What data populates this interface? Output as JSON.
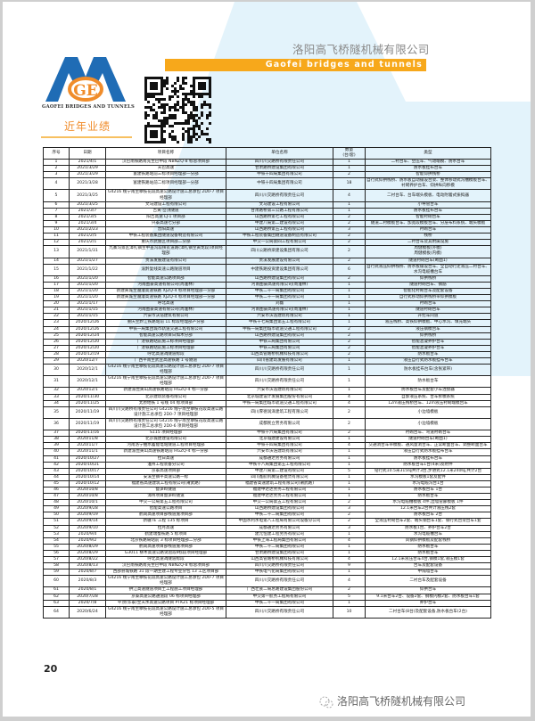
{
  "header": {
    "company_cn": "洛阳高飞桥隧机械有限公司",
    "company_en": "Gaofei bridges and tunnels",
    "logo_text": "GAOFEI BRIDGES AND TUNNELS",
    "section_title": "近年业绩"
  },
  "colors": {
    "orange": "#f7a81b",
    "blue": "#1f6cb5",
    "logo_orange": "#f08c2a",
    "bg_blue": "#e3f3fb"
  },
  "table": {
    "headers": [
      "序号",
      "日期",
      "项目名称",
      "单位名称",
      "数量\n(台/套)",
      "类型"
    ],
    "rows": [
      [
        "1",
        "2021/4/1",
        "汉巴南铁路南充至巴中段 NBNZQ-8 标总项目部",
        "四川川交路桥有限责任公司",
        "1",
        "二衬台车、空压车、气动端模、防水台车"
      ],
      [
        "2",
        "2021/3/29",
        "天巴高速",
        "甘肃路桥建设集团有限公司",
        "1",
        "防水板挂布台车"
      ],
      [
        "3",
        "2021/3/29",
        "富建铁路站前三标项目经理部一分部",
        "中铁十四局集团有限公司",
        "2",
        "智能仰拱栈桥"
      ],
      [
        "4",
        "2021/3/28",
        "富建铁路站前二标项目经理部一分部",
        "中铁十四局集团有限公司",
        "18",
        "自行式仰拱栈桥、防水板自动铺设台架、整体移动式沟槽模板台车、衬砌养护台车、仰拱纵向移模"
      ],
      [
        "5",
        "2021/3/25",
        "G4216 线宁南至攀枝花段高速公路设计施工总承包 2D0-7 项目经理部",
        "四川川交路桥有限责任公司",
        "4",
        "二衬台车、台车端头模板、电动附着式振捣器"
      ],
      [
        "6",
        "2021/3/25",
        "文马建设工程有限公司",
        "文马建设工程有限公司",
        "1",
        "小导管台车"
      ],
      [
        "7",
        "2021/3/7",
        "吉黄·岔顶隧道",
        "甘肃路桥第三公路工程有限公司",
        "1",
        "防水板挂布台车"
      ],
      [
        "8",
        "2021/3/5",
        "阳吉高速 LJ-1 项目部",
        "山西路桥第七工程有限公司",
        "2",
        "智能衬砌台车"
      ],
      [
        "9",
        "2021/3/4",
        "兴泰高速七分部",
        "中建八局第二建设有限公司",
        "2",
        "隧道二衬模板台车、加宽段模板台车、分层布料系统、端头模板"
      ],
      [
        "10",
        "2021/2/23",
        "晋阳高速",
        "山西路桥第五工程有限公司",
        "3",
        "衬砌台车"
      ],
      [
        "11",
        "2021/2/5",
        "中铁工程装备集团隧道设备制造有限公司",
        "中铁工程装备集团隧道设备制造有限公司",
        "2",
        "栈桥"
      ],
      [
        "12",
        "2021/2/1",
        "重庆市武隆区项目部二分部",
        "中交一公局第四工程有限公司",
        "2",
        "二衬台车及其附属设施"
      ],
      [
        "13",
        "2021/1/31",
        "九寨沟景区漳扎镇至中查沟段扶贫道路(漳扎镇至黄龙段)项目经理部",
        "四川公路桥梁建设集团有限公司",
        "2",
        "周健模板(外模)\n周健模板(内模)"
      ],
      [
        "14",
        "2021/1/27",
        "贵溪发展建设有限公司",
        "贵溪发展建设有限公司",
        "2",
        "隧道衬砌台车(断面1)"
      ],
      [
        "15",
        "2021/1/22",
        "渝黔复线高速公路隧道项目",
        "中建铁路投资建设集团有限公司",
        "6",
        "自行式液压仰拱栈桥、防水板铺设台车、全自动行走液压二衬台车、水沟电缆槽台车"
      ],
      [
        "16",
        "2021/1/20",
        "智能高速公路项目部",
        "山西路桥建设集团有限公司",
        "2",
        "仰拱栈桥"
      ],
      [
        "17",
        "2021/1/20",
        "河南图豪高速有限公司(周淮林)",
        "河南图豪高速有限公司(周淮林)",
        "1",
        "隧道衬砌台车、钢筋"
      ],
      [
        "18",
        "2021/1/20",
        "新建黄城至遵灌高速铁路 XJZQ-4 标项目经理部一分部",
        "中铁二十一局集团有限公司",
        "1",
        "智能化衬砌台车及配套设备"
      ],
      [
        "19",
        "2021/1/20",
        "新建黄城至遵灌高速铁路 XJZQ-4 标项目经理部一分部",
        "中铁二十一局集团有限公司",
        "1",
        "自行式移动仰拱栈桥带仰拱模板"
      ],
      [
        "20",
        "2021/1/17",
        "呼北高速",
        "刘磊",
        "1",
        "衬砌台车"
      ],
      [
        "21",
        "2021/1/15",
        "河南图豪高速有限公司(周淮林)",
        "河南图豪高速有限公司(周淮林)",
        "1",
        "隧道衬砌台车"
      ],
      [
        "22",
        "2021/1/15",
        "六安市沃浩建筑有限公司",
        "六安市沃浩建筑有限公司",
        "1",
        "开挖车间道"
      ],
      [
        "23",
        "2020/12/26",
        "重庆至黔江铁路站前 11 标段经理部产分部",
        "中铁十七局集团第五工程有限公司",
        "1",
        "液压栈桥、高铁仰拱模板、中心水沟、填充端头"
      ],
      [
        "24",
        "2020/12/26",
        "中铁一局集团城市轨道交通工程有限公司",
        "中铁一局集团城市轨道交通工程有限公司",
        "2",
        "液压钢模台车"
      ],
      [
        "25",
        "2020/12/24",
        "智能高速公路项目日如木分部",
        "山西路桥建设集团有限公司",
        "2",
        "仰拱栈桥"
      ],
      [
        "26",
        "2020/12/20",
        "广湛铁路站前施工标项目经理部",
        "中铁三局集团有限公司",
        "2",
        "智能混凝养护台车"
      ],
      [
        "27",
        "2020/12/20",
        "广湛铁路站前施工标项目经理部",
        "中铁三局集团有限公司",
        "2",
        "智能混凝养护台车"
      ],
      [
        "28",
        "2020/12/19",
        "呼北高速凋隧道标段",
        "山西高管路桥机械科技有限公司",
        "2",
        "防水板台车"
      ],
      [
        "29",
        "2020/12/7",
        "广西平南至武宣高速铁路 1 号隧道",
        "四川省建筑发展有限公司",
        "1",
        "液压自行式防水板挂布台车"
      ],
      [
        "30",
        "2020/12/1",
        "G4216 线宁南至攀枝花段高速公路设计施工总承包 2D0-7 项目经理部",
        "四川川交路桥有限责任公司",
        "1",
        "防水板挂布台车(含张紧带)"
      ],
      [
        "31",
        "2020/12/1",
        "G4216 线宁南至攀枝花段高速公路设计施工总承包 2D0-7 项目经理部",
        "四川川交路桥有限责任公司",
        "1",
        "防水板台车"
      ],
      [
        "32",
        "2020/12/1",
        "新建渝昆黄山高速铁路站前 HGZQ-4 标一分部",
        "六安市沃浩建筑有限公司",
        "1",
        "防水板台车及配套小车连接器"
      ],
      [
        "33",
        "2020/11/30",
        "北京建筑装备有限公司",
        "北京城建设计发展集团股份有限公司",
        "4",
        "自卸液压系统、台车拆模系统"
      ],
      [
        "34",
        "2020/11/25",
        "太原地铁 1 号线 04 标项目部",
        "中铁一局集团城市轨道交通工程有限公司",
        "4",
        "12m液压栈桥台车、12m液压衬砌端模台车"
      ],
      [
        "35",
        "2020/11/19",
        "四川川交路桥有限责任公司 G4216 线宁南至攀枝花段高速公路设计施工总承包 2D0-7 项目经理部",
        "四川厚德润泽建筑工程有限公司",
        "2",
        "小边墙模板"
      ],
      [
        "36",
        "2020/11/19",
        "四川川交路桥有限责任公司 G4216 线宁南至攀枝花段高速公路设计施工总承包 2D0-6 项目经理部",
        "成都民立劳务有限公司",
        "2",
        "小边墙模板"
      ],
      [
        "37",
        "2020/11/16",
        "S115 项目经理部",
        "中铁十六局集团有限公司",
        "2",
        "衬砌台车、弯道衬砌台车"
      ],
      [
        "38",
        "2020/11/8",
        "北京城建建设有限公司",
        "北京城建建设有限公司",
        "1",
        "隧道衬砌台车(断面1)"
      ],
      [
        "39",
        "2020/11/7",
        "河南洛宁抽水蓄能电站隧道工程项目经理部",
        "中铁十四局集团有限公司",
        "4",
        "交通洞台车带模板、通风量洞台车、正常断面台车、调整断面台车"
      ],
      [
        "40",
        "2020/11/1",
        "新建渝昆黄山高速铁路站前 HGZQ-4 标一分部",
        "六安市沃浩建筑有限公司",
        "1",
        "液压自行式防水板挂布台车"
      ],
      [
        "41",
        "2020/10/27",
        "拉日高速",
        "成都通达劳务有限公司",
        "1",
        "防水板挂布台车"
      ],
      [
        "42",
        "2020/10/21",
        "淮州工程装备分公司",
        "中铁十八局集团第五工程有限公司",
        "1",
        "防水板台车1台(4米)及附件"
      ],
      [
        "43",
        "2020/10/17",
        "京泰高速项目部",
        "中建八局第二建设有限公司",
        "5",
        "钻行式10.5米315吨共计3台,步进式12.1米240吨,共计2台"
      ],
      [
        "44",
        "2020/10/14",
        "安溪至镇平高速公路一标",
        "四川鑫航机械设备租赁有限公司",
        "1",
        "水沟模板1套及配件"
      ],
      [
        "45",
        "2020/10/12",
        "福建省高速建筑工程有限公司(莆武路)",
        "福建省高速建筑工程有限公司(莆武路)",
        "1",
        "水沟电缆沟台1台"
      ],
      [
        "46",
        "2020/10/8",
        "督笋岭隧道",
        "福建中达达劳务工程有限公司",
        "1",
        "防水板台车 1台"
      ],
      [
        "47",
        "2020/10/8",
        "漳州项目督笋岭隧道",
        "福建中达达劳务工程有限公司",
        "1",
        "防水板台车"
      ],
      [
        "48",
        "2020/10/1",
        "中交一公局第五工程有限公司",
        "中交一公局第五工程有限公司",
        "2",
        "水沟电缆槽模板 4件,边墙管廊模板 1件"
      ],
      [
        "49",
        "2020/9/28",
        "智能高速公路项目",
        "山西路桥建设集团有限公司",
        "3",
        "12.1米台车2台共计液压栈2套"
      ],
      [
        "50",
        "2020/9/19",
        "鹤岗高速项目部栈道施项目部",
        "中铁二十二局集团有限公司",
        "2",
        "防水板台车 2台"
      ],
      [
        "51",
        "2020/9/14",
        "新疆 IE 工程 135 标项目",
        "中国水利水电第八工程局有限公司设备分公司",
        "2",
        "全液压衬砌台车2套、端头钢台车1套、钢行式台架台车1套"
      ],
      [
        "52",
        "2020/9/10",
        "拉月高速",
        "成都通达劳务有限公司",
        "3",
        "防水板1台、养护台车2台"
      ],
      [
        "53",
        "2020/9/4",
        "鹤建瑞蜀铁路 5 标项目",
        "建元恒建工程劳务有限公司",
        "1",
        "水沟电缆槽台车"
      ],
      [
        "54",
        "2020/9/2",
        "北京铁路局站前 3 标项目经理部二分部",
        "中铁上海工程局集团有限公司",
        "4",
        "风钢仰拱模板及配套栈桥"
      ],
      [
        "55",
        "2020/8/29",
        "鹤岗高速项目部栈道施项目部",
        "中铁二十二局集团有限公司",
        "1",
        "防水板台车"
      ],
      [
        "56",
        "2020/8/29",
        "G3011 柳木高速公路试验段Ⅱ标段项目经理部",
        "甘肃路桥建设集团有限公司",
        "1",
        "防水板台车"
      ],
      [
        "57",
        "2020/8/22",
        "呼北高速凋隧道标段",
        "山西高管路桥机械科技有限公司",
        "4",
        "12.1米液压台车4台,钢模1套,液压模1套"
      ],
      [
        "58",
        "2020/8/13",
        "汉巴南铁路南充至巴中段 NBNZQ-8 标总项目部",
        "四川川交路桥有限责任公司",
        "9",
        "台车及配套设备"
      ],
      [
        "59",
        "2020/8/7",
        "西部县城铁路 31 段一期主建工程专业分包 13 工区项目部",
        "中铁电气化局集团有限公司",
        "1",
        "中隔墙台车"
      ],
      [
        "60",
        "2020/8/3",
        "G4216 线宁南至攀枝花段高速公路设计施工总承包 2D0-7 项目经理部",
        "四川川交路桥有限责任公司",
        "4",
        "二衬台车及配套设备"
      ],
      [
        "61",
        "2020/8/1",
        "拱江高速隧道项目土工程施工项目经理部",
        "广西壮族二局总路建设集团股份公司",
        "2",
        "仰拱台车"
      ],
      [
        "62",
        "2020/7/28",
        "京泰高速公路通道段 06 标项目经理部",
        "中交第一航务工程局有限公司",
        "5",
        "9.1米台车2台、设备2套、钢模内模2套、防水板台车1套"
      ],
      [
        "63",
        "2020/7/8",
        "平顶(华泰)至天水高速公路项目 PTKZ1 标项目经理部",
        "中铁二十一局集团有限公司",
        "1",
        "养护台车"
      ],
      [
        "64",
        "2020/6/24",
        "G4216 线宁南至攀枝花段高速公路设计施工总承包 2D0-5 项目经理部",
        "四川川交路桥有限责任公司",
        "10",
        "二衬台车(8台)及配套设备,防水板台车(2台)"
      ]
    ]
  },
  "footer": {
    "page_number": "20",
    "wechat_name": "洛阳高飞桥隧机械有限公司"
  }
}
